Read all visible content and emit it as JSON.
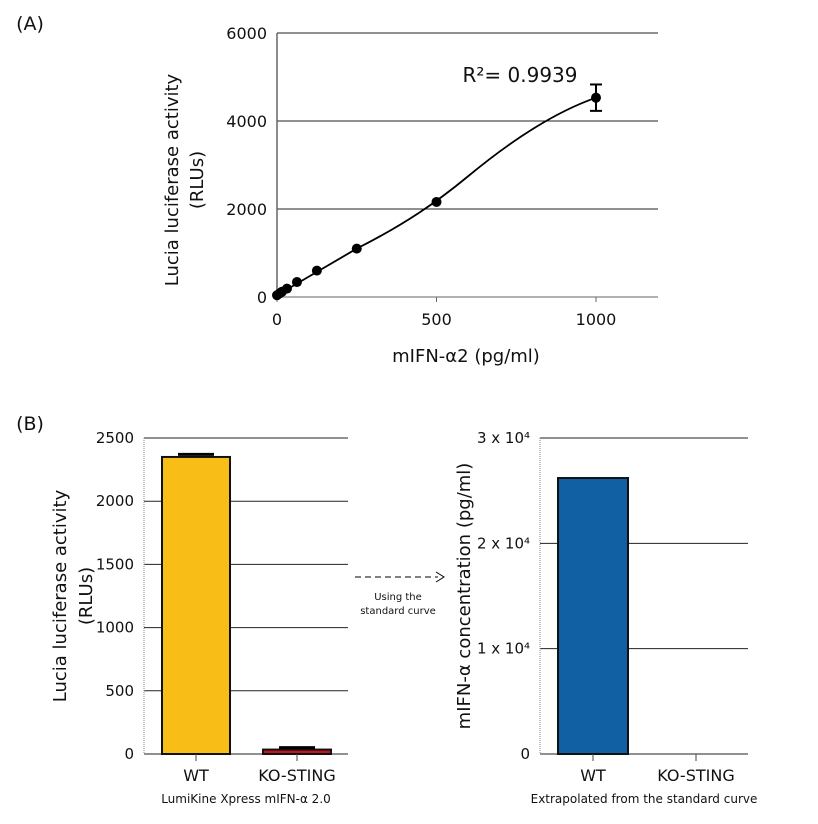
{
  "chart_data": [
    {
      "panel": "(A)",
      "type": "scatter",
      "xlabel": "mIFN-α2 (pg/ml)",
      "ylabel": [
        "Lucia luciferase activity",
        "(RLUs)"
      ],
      "xlim": [
        0,
        1200
      ],
      "ylim": [
        0,
        6000
      ],
      "xticks": [
        "0",
        "500",
        "1000"
      ],
      "yticks": [
        "0",
        "2000",
        "4000",
        "6000"
      ],
      "grid": true,
      "annotation": "R²= 0.9939",
      "fit": "curve",
      "x": [
        0,
        7.8,
        15.6,
        31.25,
        62.5,
        125,
        250,
        500,
        1000
      ],
      "y": [
        40,
        80,
        120,
        190,
        340,
        600,
        1100,
        2160,
        4530
      ],
      "error": [
        0,
        0,
        0,
        0,
        0,
        0,
        0,
        0,
        300
      ]
    },
    {
      "panel": "(B)",
      "type": "bar",
      "ylabel": [
        "Lucia luciferase activity",
        "(RLUs)"
      ],
      "xlabel": "LumiKine Xpress mIFN-α 2.0",
      "categories": [
        "WT",
        "KO-STING"
      ],
      "values": [
        2350,
        35
      ],
      "colors": [
        "#f9bd18",
        "#c0161d"
      ],
      "ylim": [
        0,
        2500
      ],
      "yticks": [
        "0",
        "500",
        "1000",
        "1500",
        "2000",
        "2500"
      ],
      "grid": true
    },
    {
      "type": "bar",
      "ylabel": "mIFN-α concentration (pg/ml)",
      "xlabel": "Extrapolated from the standard curve",
      "categories": [
        "WT",
        "KO-STING"
      ],
      "values": [
        26200,
        0
      ],
      "colors": [
        "#1160a4",
        "#1160a4"
      ],
      "ylim": [
        0,
        30000
      ],
      "yticks": [
        "0",
        "1 x 10⁴",
        "2 x 10⁴",
        "3 x 10⁴"
      ],
      "grid": true
    }
  ],
  "arrow_label": [
    "Using the",
    "standard curve"
  ]
}
